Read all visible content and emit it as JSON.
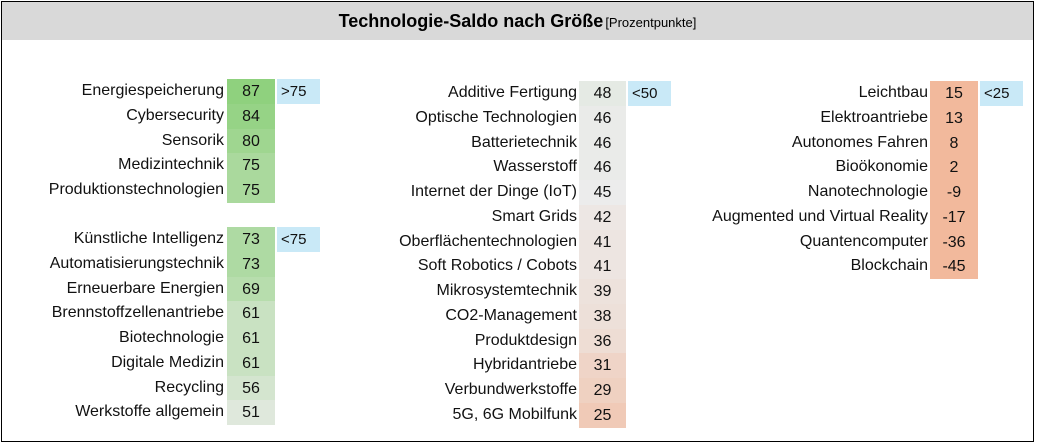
{
  "header": {
    "title": "Technologie-Saldo nach Größe",
    "subtitle": "[Prozentpunkte]"
  },
  "colors": {
    "header_bg": "#d9d9d9",
    "badge_bg": "#c9e9f7",
    "high": "#8fd17e",
    "neutral": "#ececec",
    "low": "#f2b99c"
  },
  "badges": [
    {
      "group": 0,
      "text": ">75"
    },
    {
      "group": 1,
      "text": "<75"
    },
    {
      "group": 2,
      "text": "<50"
    },
    {
      "group": 3,
      "text": "<25"
    }
  ],
  "chart_data": {
    "type": "table",
    "title": "Technologie-Saldo nach Größe",
    "unit": "[Prozentpunkte]",
    "groups": [
      {
        "badge": ">75",
        "items": [
          {
            "label": "Energiespeicherung",
            "value": 87
          },
          {
            "label": "Cybersecurity",
            "value": 84
          },
          {
            "label": "Sensorik",
            "value": 80
          },
          {
            "label": "Medizintechnik",
            "value": 75
          },
          {
            "label": "Produktionstechnologien",
            "value": 75
          }
        ]
      },
      {
        "badge": "<75",
        "items": [
          {
            "label": "Künstliche Intelligenz",
            "value": 73
          },
          {
            "label": "Automatisierungstechnik",
            "value": 73
          },
          {
            "label": "Erneuerbare Energien",
            "value": 69
          },
          {
            "label": "Brennstoffzellenantriebe",
            "value": 61
          },
          {
            "label": "Biotechnologie",
            "value": 61
          },
          {
            "label": "Digitale Medizin",
            "value": 61
          },
          {
            "label": "Recycling",
            "value": 56
          },
          {
            "label": "Werkstoffe allgemein",
            "value": 51
          }
        ]
      },
      {
        "badge": "<50",
        "items": [
          {
            "label": "Additive Fertigung",
            "value": 48
          },
          {
            "label": "Optische Technologien",
            "value": 46
          },
          {
            "label": "Batterietechnik",
            "value": 46
          },
          {
            "label": "Wasserstoff",
            "value": 46
          },
          {
            "label": "Internet der Dinge (IoT)",
            "value": 45
          },
          {
            "label": "Smart Grids",
            "value": 42
          },
          {
            "label": "Oberflächentechnologien",
            "value": 41
          },
          {
            "label": "Soft Robotics / Cobots",
            "value": 41
          },
          {
            "label": "Mikrosystemtechnik",
            "value": 39
          },
          {
            "label": "CO2-Management",
            "value": 38
          },
          {
            "label": "Produktdesign",
            "value": 36
          },
          {
            "label": "Hybridantriebe",
            "value": 31
          },
          {
            "label": "Verbundwerkstoffe",
            "value": 29
          },
          {
            "label": "5G, 6G Mobilfunk",
            "value": 25
          }
        ]
      },
      {
        "badge": "<25",
        "items": [
          {
            "label": "Leichtbau",
            "value": 15
          },
          {
            "label": "Elektroantriebe",
            "value": 13
          },
          {
            "label": "Autonomes Fahren",
            "value": 8
          },
          {
            "label": "Bioökonomie",
            "value": 2
          },
          {
            "label": "Nanotechnologie",
            "value": -9
          },
          {
            "label": "Augmented und Virtual Reality",
            "value": -17
          },
          {
            "label": "Quantencomputer",
            "value": -36
          },
          {
            "label": "Blockchain",
            "value": -45
          }
        ]
      }
    ]
  }
}
